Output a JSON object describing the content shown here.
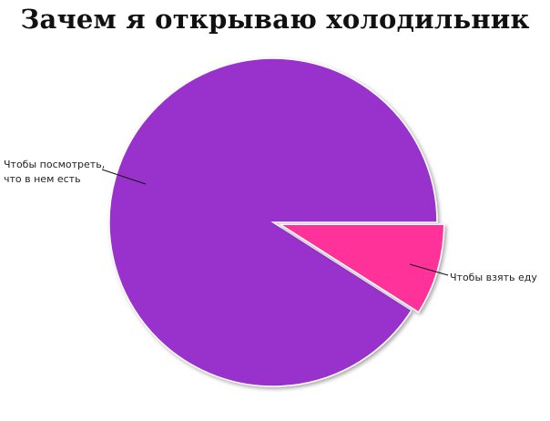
{
  "chart_data": {
    "type": "pie",
    "title": "Зачем я открываю холодильник",
    "slices": [
      {
        "label_lines": [
          "Чтобы посмотреть,",
          "что в нем есть"
        ],
        "value": 91,
        "color": "#9933CC"
      },
      {
        "label_lines": [
          "Чтобы взять еду"
        ],
        "value": 9,
        "color": "#FF3399"
      }
    ],
    "legend": "none",
    "grid": false
  }
}
